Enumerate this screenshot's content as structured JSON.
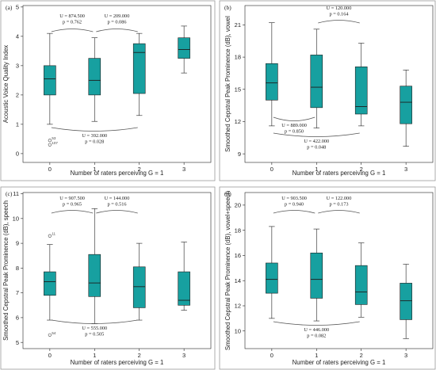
{
  "chart_data": [
    {
      "type": "box",
      "panel": "(a)",
      "title": "",
      "xlabel": "Number of raters perceiving G = 1",
      "ylabel": "Acoustic Voice Quality Index",
      "categories": [
        "0",
        "1",
        "2",
        "3"
      ],
      "ylim": [
        -0.3,
        5.05
      ],
      "yticks": [
        "0",
        "1",
        "2",
        "3",
        "4",
        "5"
      ],
      "boxes": [
        {
          "category": "0",
          "min": 1.0,
          "q1": 2.0,
          "median": 2.55,
          "q3": 3.0,
          "max": 4.1
        },
        {
          "category": "1",
          "min": 1.1,
          "q1": 2.0,
          "median": 2.5,
          "q3": 3.25,
          "max": 3.95
        },
        {
          "category": "2",
          "min": 1.3,
          "q1": 2.05,
          "median": 3.45,
          "q3": 3.75,
          "max": 4.1
        },
        {
          "category": "3",
          "min": 2.75,
          "q1": 3.25,
          "median": 3.55,
          "q3": 3.95,
          "max": 4.35
        }
      ],
      "outliers": [
        {
          "category": "0",
          "value": 0.45,
          "label": "53"
        },
        {
          "category": "0",
          "value": 0.3,
          "label": "107"
        }
      ],
      "annotations": [
        {
          "U": "U = 874.500",
          "p": "p = 0.762",
          "from": "0",
          "to": "1",
          "position": "above"
        },
        {
          "U": "U = 209.000",
          "p": "p = 0.086",
          "from": "1",
          "to": "2",
          "position": "above"
        },
        {
          "U": "U = 392.000",
          "p": "p = 0.028",
          "from": "0",
          "to": "2",
          "position": "below"
        }
      ]
    },
    {
      "type": "box",
      "panel": "(b)",
      "title": "",
      "xlabel": "Number of raters perceiving G = 1",
      "ylabel": "Smoothed Cepstral Peak Prominence (dB), vowel",
      "categories": [
        "0",
        "1",
        "2",
        "3"
      ],
      "ylim": [
        8.2,
        22.8
      ],
      "yticks": [
        "9",
        "12",
        "15",
        "18",
        "21"
      ],
      "boxes": [
        {
          "category": "0",
          "min": 11.6,
          "q1": 14.0,
          "median": 15.6,
          "q3": 17.4,
          "max": 21.2
        },
        {
          "category": "1",
          "min": 11.4,
          "q1": 13.3,
          "median": 15.2,
          "q3": 18.2,
          "max": 20.6
        },
        {
          "category": "2",
          "min": 11.6,
          "q1": 12.7,
          "median": 13.4,
          "q3": 17.1,
          "max": 19.3
        },
        {
          "category": "3",
          "min": 9.7,
          "q1": 11.8,
          "median": 13.8,
          "q3": 15.3,
          "max": 16.8
        }
      ],
      "outliers": [],
      "annotations": [
        {
          "U": "U = 120.000",
          "p": "p = 0.164",
          "from": "1",
          "to": "2",
          "position": "above"
        },
        {
          "U": "U = 889.000",
          "p": "p = 0.850",
          "from": "0",
          "to": "1",
          "position": "below"
        },
        {
          "U": "U = 422.000",
          "p": "p = 0.048",
          "from": "0",
          "to": "2",
          "position": "below"
        }
      ]
    },
    {
      "type": "box",
      "panel": "(c)",
      "title": "",
      "xlabel": "Number of raters perceiving G = 1",
      "ylabel": "Smoothed Cepstral Peak Prominence (dB), speech",
      "categories": [
        "0",
        "1",
        "2",
        "3"
      ],
      "ylim": [
        4.75,
        11.05
      ],
      "yticks": [
        "5",
        "6",
        "7",
        "8",
        "9",
        "10",
        "11"
      ],
      "boxes": [
        {
          "category": "0",
          "min": 5.9,
          "q1": 6.9,
          "median": 7.45,
          "q3": 7.85,
          "max": 8.95
        },
        {
          "category": "1",
          "min": 5.75,
          "q1": 6.85,
          "median": 7.4,
          "q3": 8.55,
          "max": 10.4
        },
        {
          "category": "2",
          "min": 5.9,
          "q1": 6.4,
          "median": 7.25,
          "q3": 8.05,
          "max": 9.0
        },
        {
          "category": "3",
          "min": 6.3,
          "q1": 6.5,
          "median": 6.7,
          "q3": 7.85,
          "max": 9.05
        }
      ],
      "outliers": [
        {
          "category": "0",
          "value": 9.3,
          "label": "11"
        },
        {
          "category": "0",
          "value": 5.3,
          "label": "54"
        }
      ],
      "annotations": [
        {
          "U": "U = 907.500",
          "p": "p = 0.965",
          "from": "0",
          "to": "1",
          "position": "above"
        },
        {
          "U": "U = 144.000",
          "p": "p = 0.516",
          "from": "1",
          "to": "2",
          "position": "above"
        },
        {
          "U": "U = 555.000",
          "p": "p = 0.505",
          "from": "0",
          "to": "2",
          "position": "below"
        }
      ]
    },
    {
      "type": "box",
      "panel": "(d)",
      "title": "",
      "xlabel": "Number of raters perceiving G = 1",
      "ylabel": "Smoothed Cepstral Peak Prominence (dB), vowel+speech",
      "categories": [
        "0",
        "1",
        "2",
        "3"
      ],
      "ylim": [
        8.6,
        21.0
      ],
      "yticks": [
        "10",
        "12",
        "14",
        "16",
        "18",
        "20"
      ],
      "boxes": [
        {
          "category": "0",
          "min": 11.0,
          "q1": 13.0,
          "median": 14.1,
          "q3": 15.4,
          "max": 18.3
        },
        {
          "category": "1",
          "min": 10.8,
          "q1": 12.6,
          "median": 14.1,
          "q3": 16.2,
          "max": 18.1
        },
        {
          "category": "2",
          "min": 11.1,
          "q1": 12.1,
          "median": 13.1,
          "q3": 15.2,
          "max": 17.0
        },
        {
          "category": "3",
          "min": 9.4,
          "q1": 10.9,
          "median": 12.4,
          "q3": 13.8,
          "max": 15.3
        }
      ],
      "outliers": [],
      "annotations": [
        {
          "U": "U = 903.500",
          "p": "p = 0.940",
          "from": "0",
          "to": "1",
          "position": "above"
        },
        {
          "U": "U = 122.000",
          "p": "p = 0.173",
          "from": "1",
          "to": "2",
          "position": "above"
        },
        {
          "U": "U = 446.000",
          "p": "p = 0.082",
          "from": "0",
          "to": "2",
          "position": "below"
        }
      ]
    }
  ]
}
